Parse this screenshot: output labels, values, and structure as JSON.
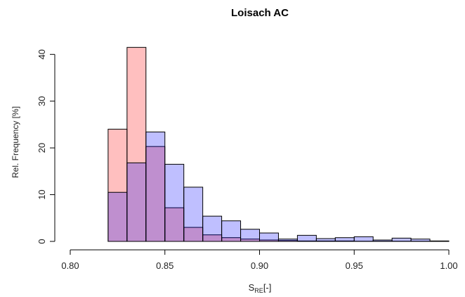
{
  "chart_data": {
    "type": "bar",
    "title": "Loisach AC",
    "xlabel_main": "S",
    "xlabel_sub": "RE",
    "xlabel_suffix": "[-]",
    "ylabel": "Rel. Frequency [%]",
    "xlim": [
      0.8,
      1.0
    ],
    "ylim": [
      0,
      42
    ],
    "xticks": [
      0.8,
      0.85,
      0.9,
      0.95,
      1.0
    ],
    "xtick_labels": [
      "0.80",
      "0.85",
      "0.90",
      "0.95",
      "1.00"
    ],
    "yticks": [
      0,
      10,
      20,
      30,
      40
    ],
    "ytick_labels": [
      "0",
      "10",
      "20",
      "30",
      "40"
    ],
    "grid": false,
    "series": [
      {
        "color": "#ff000040",
        "bins": [
          {
            "x0": 0.82,
            "x1": 0.83,
            "value": 24.0
          },
          {
            "x0": 0.83,
            "x1": 0.84,
            "value": 41.5
          },
          {
            "x0": 0.84,
            "x1": 0.85,
            "value": 20.3
          },
          {
            "x0": 0.85,
            "x1": 0.86,
            "value": 7.2
          },
          {
            "x0": 0.86,
            "x1": 0.87,
            "value": 3.0
          },
          {
            "x0": 0.87,
            "x1": 0.88,
            "value": 1.4
          },
          {
            "x0": 0.88,
            "x1": 0.89,
            "value": 0.8
          },
          {
            "x0": 0.89,
            "x1": 0.9,
            "value": 0.5
          },
          {
            "x0": 0.9,
            "x1": 0.91,
            "value": 0.3
          },
          {
            "x0": 0.91,
            "x1": 0.92,
            "value": 0.2
          },
          {
            "x0": 0.92,
            "x1": 0.93,
            "value": 0.1
          },
          {
            "x0": 0.93,
            "x1": 0.94,
            "value": 0.1
          },
          {
            "x0": 0.94,
            "x1": 0.95,
            "value": 0.1
          },
          {
            "x0": 0.95,
            "x1": 0.96,
            "value": 0.05
          },
          {
            "x0": 0.96,
            "x1": 0.97,
            "value": 0.05
          },
          {
            "x0": 0.97,
            "x1": 0.98,
            "value": 0.05
          },
          {
            "x0": 0.98,
            "x1": 0.99,
            "value": 0.05
          },
          {
            "x0": 0.99,
            "x1": 1.0,
            "value": 0.05
          }
        ]
      },
      {
        "color": "#0000ff40",
        "bins": [
          {
            "x0": 0.82,
            "x1": 0.83,
            "value": 10.5
          },
          {
            "x0": 0.83,
            "x1": 0.84,
            "value": 16.8
          },
          {
            "x0": 0.84,
            "x1": 0.85,
            "value": 23.4
          },
          {
            "x0": 0.85,
            "x1": 0.86,
            "value": 16.5
          },
          {
            "x0": 0.86,
            "x1": 0.87,
            "value": 11.6
          },
          {
            "x0": 0.87,
            "x1": 0.88,
            "value": 5.4
          },
          {
            "x0": 0.88,
            "x1": 0.89,
            "value": 4.4
          },
          {
            "x0": 0.89,
            "x1": 0.9,
            "value": 2.6
          },
          {
            "x0": 0.9,
            "x1": 0.91,
            "value": 1.8
          },
          {
            "x0": 0.91,
            "x1": 0.92,
            "value": 0.5
          },
          {
            "x0": 0.92,
            "x1": 0.93,
            "value": 1.3
          },
          {
            "x0": 0.93,
            "x1": 0.94,
            "value": 0.6
          },
          {
            "x0": 0.94,
            "x1": 0.95,
            "value": 0.8
          },
          {
            "x0": 0.95,
            "x1": 0.96,
            "value": 1.0
          },
          {
            "x0": 0.96,
            "x1": 0.97,
            "value": 0.3
          },
          {
            "x0": 0.97,
            "x1": 0.98,
            "value": 0.7
          },
          {
            "x0": 0.98,
            "x1": 0.99,
            "value": 0.5
          },
          {
            "x0": 0.99,
            "x1": 1.0,
            "value": 0.1
          }
        ]
      }
    ]
  }
}
